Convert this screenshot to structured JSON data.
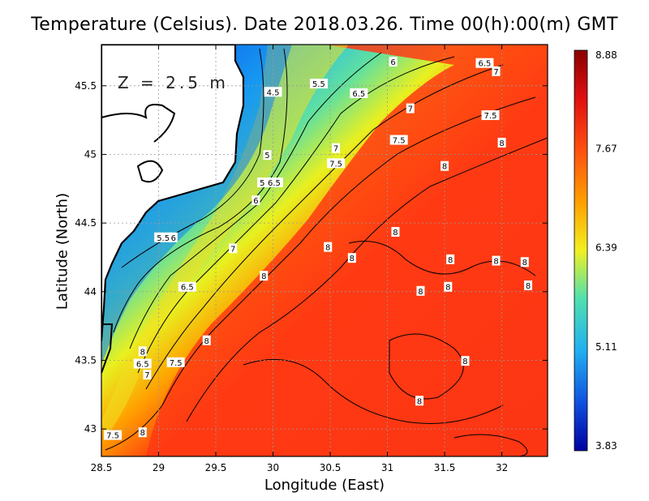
{
  "title": "Temperature (Celsius). Date 2018.03.26. Time 00(h):00(m) GMT",
  "depth_label": "Z = 2.5 m",
  "chart_data": {
    "type": "heatmap",
    "variable": "Temperature (Celsius)",
    "xlabel": "Longitude (East)",
    "ylabel": "Latitude (North)",
    "xlim": [
      28.5,
      32.4
    ],
    "ylim": [
      42.8,
      45.8
    ],
    "x_ticks": [
      "28.5",
      "29",
      "29.5",
      "30",
      "30.5",
      "31",
      "31.5",
      "32"
    ],
    "x_tick_values": [
      28.5,
      29,
      29.5,
      30,
      30.5,
      31,
      31.5,
      32
    ],
    "y_ticks": [
      "43",
      "43.5",
      "44",
      "44.5",
      "45",
      "45.5"
    ],
    "y_tick_values": [
      43,
      43.5,
      44,
      44.5,
      45,
      45.5
    ],
    "grid": true,
    "colorbar": {
      "min": 3.83,
      "max": 8.88,
      "tick_labels": [
        "8.88",
        "7.67",
        "6.39",
        "5.11",
        "3.83"
      ],
      "tick_values": [
        8.88,
        7.67,
        6.39,
        5.11,
        3.83
      ]
    },
    "contour_labels": [
      {
        "text": "6",
        "lon": 31.05,
        "lat": 45.67
      },
      {
        "text": "6.5",
        "lon": 31.85,
        "lat": 45.66
      },
      {
        "text": "7",
        "lon": 31.95,
        "lat": 45.6
      },
      {
        "text": "4.5",
        "lon": 30.0,
        "lat": 45.45
      },
      {
        "text": "5.5",
        "lon": 30.4,
        "lat": 45.51
      },
      {
        "text": "6.5",
        "lon": 30.75,
        "lat": 45.44
      },
      {
        "text": "7",
        "lon": 31.2,
        "lat": 45.33
      },
      {
        "text": "7.5",
        "lon": 31.9,
        "lat": 45.28
      },
      {
        "text": "7.5",
        "lon": 31.1,
        "lat": 45.1
      },
      {
        "text": "8",
        "lon": 32.0,
        "lat": 45.08
      },
      {
        "text": "7",
        "lon": 30.55,
        "lat": 45.04
      },
      {
        "text": "5",
        "lon": 29.95,
        "lat": 44.99
      },
      {
        "text": "7.5",
        "lon": 30.55,
        "lat": 44.93
      },
      {
        "text": "8",
        "lon": 31.5,
        "lat": 44.91
      },
      {
        "text": "5.5",
        "lon": 29.94,
        "lat": 44.79
      },
      {
        "text": "6.5",
        "lon": 30.01,
        "lat": 44.79
      },
      {
        "text": "6",
        "lon": 29.85,
        "lat": 44.66
      },
      {
        "text": "8",
        "lon": 31.07,
        "lat": 44.43
      },
      {
        "text": "5.5",
        "lon": 29.04,
        "lat": 44.39
      },
      {
        "text": "6",
        "lon": 29.13,
        "lat": 44.39
      },
      {
        "text": "7",
        "lon": 29.65,
        "lat": 44.31
      },
      {
        "text": "8",
        "lon": 30.48,
        "lat": 44.32
      },
      {
        "text": "8",
        "lon": 30.69,
        "lat": 44.24
      },
      {
        "text": "8",
        "lon": 31.55,
        "lat": 44.23
      },
      {
        "text": "8",
        "lon": 31.95,
        "lat": 44.22
      },
      {
        "text": "8",
        "lon": 32.2,
        "lat": 44.21
      },
      {
        "text": "8",
        "lon": 29.92,
        "lat": 44.11
      },
      {
        "text": "6.5",
        "lon": 29.25,
        "lat": 44.03
      },
      {
        "text": "8",
        "lon": 31.53,
        "lat": 44.03
      },
      {
        "text": "8",
        "lon": 31.29,
        "lat": 44.0
      },
      {
        "text": "8",
        "lon": 32.23,
        "lat": 44.04
      },
      {
        "text": "8",
        "lon": 29.42,
        "lat": 43.64
      },
      {
        "text": "8",
        "lon": 28.86,
        "lat": 43.56
      },
      {
        "text": "6.5",
        "lon": 28.86,
        "lat": 43.47
      },
      {
        "text": "7.5",
        "lon": 29.15,
        "lat": 43.48
      },
      {
        "text": "7",
        "lon": 28.9,
        "lat": 43.39
      },
      {
        "text": "8",
        "lon": 31.68,
        "lat": 43.49
      },
      {
        "text": "8",
        "lon": 31.28,
        "lat": 43.2
      },
      {
        "text": "7.5",
        "lon": 28.6,
        "lat": 42.95
      },
      {
        "text": "8",
        "lon": 28.86,
        "lat": 42.97
      }
    ]
  }
}
